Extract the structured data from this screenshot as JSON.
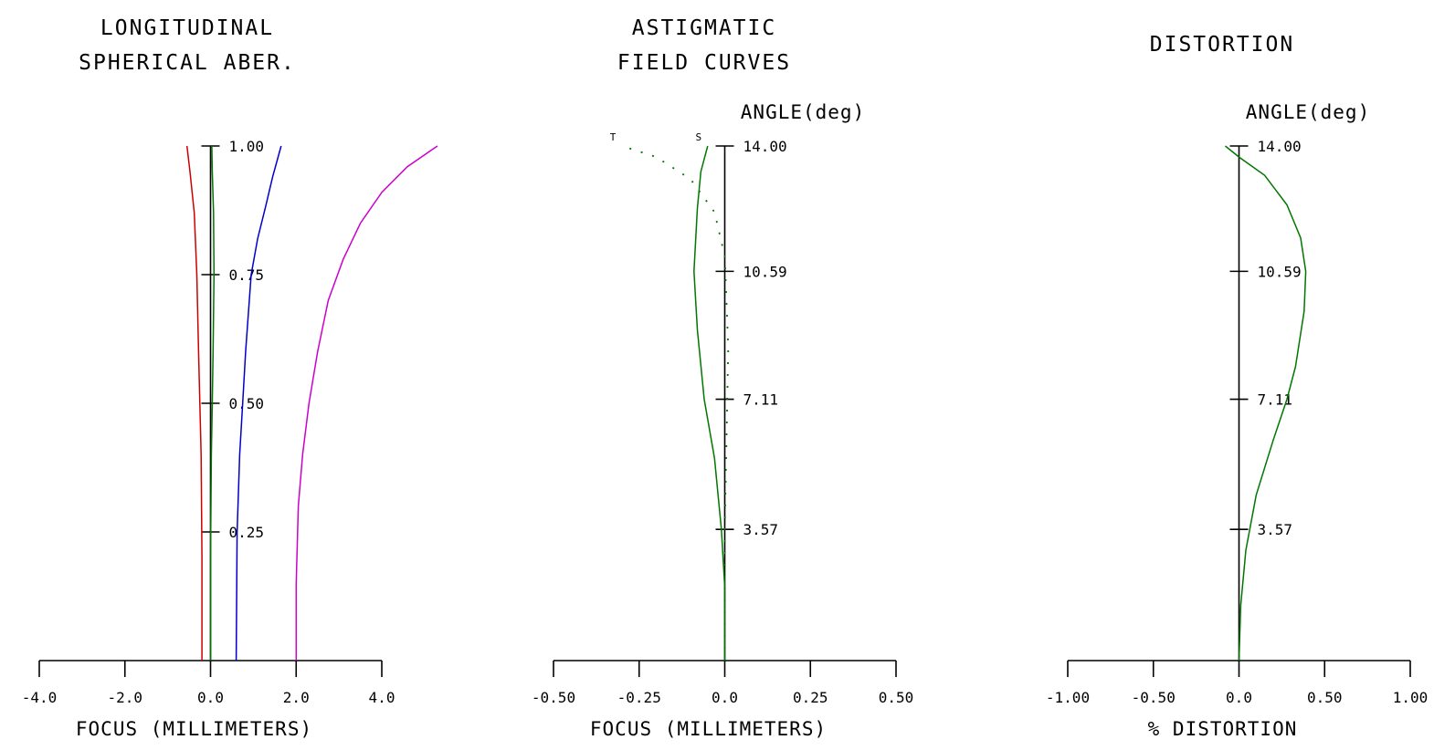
{
  "chart_data": [
    {
      "type": "line",
      "title_lines": [
        "LONGITUDINAL",
        "SPHERICAL ABER."
      ],
      "xlabel": "FOCUS (MILLIMETERS)",
      "xlim": [
        -4.0,
        4.0
      ],
      "xticks": [
        -4.0,
        -2.0,
        0.0,
        2.0,
        4.0
      ],
      "xtick_labels": [
        "-4.0",
        "-2.0",
        "0.0",
        "2.0",
        "4.0"
      ],
      "ylim": [
        0,
        1
      ],
      "yticks": [
        0.25,
        0.5,
        0.75,
        1.0
      ],
      "ytick_labels": [
        "0.25",
        "0.50",
        "0.75",
        "1.00"
      ],
      "series": [
        {
          "color": "#cc0000",
          "x": [
            -0.2,
            -0.2,
            -0.22,
            -0.25,
            -0.28,
            -0.32,
            -0.38,
            -0.48,
            -0.55
          ],
          "y": [
            0.0,
            0.2,
            0.4,
            0.5,
            0.6,
            0.75,
            0.87,
            0.95,
            1.0
          ]
        },
        {
          "color": "#007700",
          "x": [
            0.0,
            0.0,
            0.02,
            0.04,
            0.06,
            0.08,
            0.07,
            0.04,
            0.03
          ],
          "y": [
            0.0,
            0.2,
            0.4,
            0.5,
            0.6,
            0.75,
            0.87,
            0.95,
            1.0
          ]
        },
        {
          "color": "#0000cc",
          "x": [
            0.6,
            0.62,
            0.68,
            0.75,
            0.82,
            0.95,
            1.1,
            1.28,
            1.45,
            1.65
          ],
          "y": [
            0.0,
            0.25,
            0.4,
            0.5,
            0.6,
            0.75,
            0.82,
            0.88,
            0.94,
            1.0
          ]
        },
        {
          "color": "#cc00cc",
          "x": [
            2.0,
            2.0,
            2.05,
            2.15,
            2.3,
            2.5,
            2.75,
            3.1,
            3.5,
            4.0,
            4.6,
            5.3
          ],
          "y": [
            0.0,
            0.15,
            0.3,
            0.4,
            0.5,
            0.6,
            0.7,
            0.78,
            0.85,
            0.91,
            0.96,
            1.0
          ]
        }
      ]
    },
    {
      "type": "line",
      "title_lines": [
        "ASTIGMATIC",
        "FIELD CURVES"
      ],
      "xlabel": "FOCUS (MILLIMETERS)",
      "angle_label": "ANGLE(deg)",
      "xlim": [
        -0.5,
        0.5
      ],
      "xticks": [
        -0.5,
        -0.25,
        0.0,
        0.25,
        0.5
      ],
      "xtick_labels": [
        "-0.50",
        "-0.25",
        "0.0",
        "0.25",
        "0.50"
      ],
      "ylim": [
        0,
        14.0
      ],
      "yticks": [
        3.57,
        7.11,
        10.59,
        14.0
      ],
      "ytick_labels": [
        "3.57",
        "7.11",
        "10.59",
        "14.00"
      ],
      "curve_labels": {
        "tangential": "T",
        "sagittal": "S"
      },
      "series": [
        {
          "kind": "sagittal",
          "style": "solid",
          "color": "#007700",
          "x": [
            0.0,
            0.0,
            -0.01,
            -0.03,
            -0.06,
            -0.08,
            -0.09,
            -0.08,
            -0.07,
            -0.05
          ],
          "y": [
            0.0,
            2.0,
            3.57,
            5.5,
            7.11,
            9.0,
            10.59,
            12.3,
            13.3,
            14.0
          ]
        },
        {
          "kind": "tangential",
          "style": "dotted",
          "color": "#007700",
          "x": [
            0.0,
            0.0,
            0.005,
            0.01,
            0.0,
            -0.03,
            -0.1,
            -0.2,
            -0.3
          ],
          "y": [
            0.0,
            3.57,
            6.0,
            8.5,
            11.0,
            12.2,
            13.1,
            13.7,
            14.0
          ]
        }
      ]
    },
    {
      "type": "line",
      "title_lines": [
        "DISTORTION"
      ],
      "xlabel": "% DISTORTION",
      "angle_label": "ANGLE(deg)",
      "xlim": [
        -1.0,
        1.0
      ],
      "xticks": [
        -1.0,
        -0.5,
        0.0,
        0.5,
        1.0
      ],
      "xtick_labels": [
        "-1.00",
        "-0.50",
        "0.0",
        "0.50",
        "1.00"
      ],
      "ylim": [
        0,
        14.0
      ],
      "yticks": [
        3.57,
        7.11,
        10.59,
        14.0
      ],
      "ytick_labels": [
        "3.57",
        "7.11",
        "10.59",
        "14.00"
      ],
      "series": [
        {
          "color": "#007700",
          "x": [
            0.0,
            0.01,
            0.04,
            0.1,
            0.2,
            0.28,
            0.33,
            0.38,
            0.39,
            0.36,
            0.28,
            0.15,
            0.0,
            -0.08
          ],
          "y": [
            0.0,
            1.5,
            3.0,
            4.5,
            6.0,
            7.11,
            8.0,
            9.5,
            10.59,
            11.5,
            12.4,
            13.2,
            13.7,
            14.0
          ]
        }
      ]
    }
  ]
}
